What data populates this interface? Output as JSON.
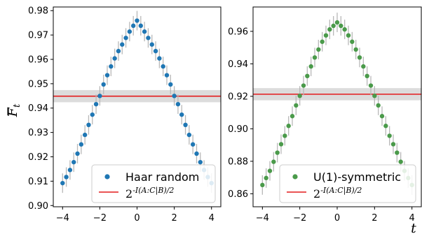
{
  "ylabel_symbol": "F",
  "ylabel_sub": "t",
  "xlabel": "t",
  "chart_data": [
    {
      "type": "scatter",
      "panel": "left",
      "ylim": [
        0.8995,
        0.9815
      ],
      "xlim": [
        -4.5,
        4.5
      ],
      "yticks": [
        "0.90",
        "0.91",
        "0.92",
        "0.93",
        "0.94",
        "0.95",
        "0.96",
        "0.97",
        "0.98"
      ],
      "xticks": [
        "−4",
        "−2",
        "0",
        "2",
        "4"
      ],
      "legend_position": "lower-right",
      "series": [
        {
          "name": "Haar random",
          "color": "#1f77b4",
          "x": [
            -4.0,
            -3.8,
            -3.6,
            -3.4,
            -3.2,
            -3.0,
            -2.8,
            -2.6,
            -2.4,
            -2.2,
            -2.0,
            -1.8,
            -1.6,
            -1.4,
            -1.2,
            -1.0,
            -0.8,
            -0.6,
            -0.4,
            -0.2,
            0.0,
            0.2,
            0.4,
            0.6,
            0.8,
            1.0,
            1.2,
            1.4,
            1.6,
            1.8,
            2.0,
            2.2,
            2.4,
            2.6,
            2.8,
            3.0,
            3.2,
            3.4,
            3.6,
            3.8,
            4.0
          ],
          "y": [
            0.9092,
            0.9117,
            0.9146,
            0.9178,
            0.9213,
            0.9251,
            0.929,
            0.9331,
            0.9373,
            0.9416,
            0.945,
            0.9497,
            0.9535,
            0.9571,
            0.9604,
            0.9634,
            0.9661,
            0.9688,
            0.9714,
            0.9738,
            0.9759,
            0.9738,
            0.9714,
            0.9688,
            0.9661,
            0.9634,
            0.9604,
            0.9571,
            0.9535,
            0.9497,
            0.945,
            0.9416,
            0.9373,
            0.9331,
            0.929,
            0.9251,
            0.9213,
            0.9178,
            0.9146,
            0.9117,
            0.9092
          ],
          "yerr": 0.004
        },
        {
          "name": "2^{-I(A:C|B)/2}",
          "type": "hline",
          "color": "#e41a1c",
          "y": 0.9449,
          "band": 0.001
        }
      ]
    },
    {
      "type": "scatter",
      "panel": "right",
      "ylim": [
        0.852,
        0.975
      ],
      "xlim": [
        -4.5,
        4.5
      ],
      "yticks": [
        "0.86",
        "0.88",
        "0.90",
        "0.92",
        "0.94",
        "0.96"
      ],
      "xticks": [
        "−4",
        "−2",
        "0",
        "2",
        "4"
      ],
      "legend_position": "lower-right",
      "series": [
        {
          "name": "U(1)-symmetric",
          "color": "#4a9a4a",
          "x": [
            -4.0,
            -3.8,
            -3.6,
            -3.4,
            -3.2,
            -3.0,
            -2.8,
            -2.6,
            -2.4,
            -2.2,
            -2.0,
            -1.8,
            -1.6,
            -1.4,
            -1.2,
            -1.0,
            -0.8,
            -0.6,
            -0.4,
            -0.2,
            0.0,
            0.2,
            0.4,
            0.6,
            0.8,
            1.0,
            1.2,
            1.4,
            1.6,
            1.8,
            2.0,
            2.2,
            2.4,
            2.6,
            2.8,
            3.0,
            3.2,
            3.4,
            3.6,
            3.8,
            4.0
          ],
          "y": [
            0.8654,
            0.8697,
            0.8741,
            0.8797,
            0.8853,
            0.8905,
            0.8957,
            0.9018,
            0.9078,
            0.9144,
            0.9203,
            0.9266,
            0.9325,
            0.9384,
            0.9439,
            0.9488,
            0.9536,
            0.9575,
            0.9612,
            0.9634,
            0.9655,
            0.9634,
            0.9612,
            0.9575,
            0.9536,
            0.9488,
            0.9439,
            0.9384,
            0.9325,
            0.9266,
            0.9203,
            0.9144,
            0.9078,
            0.9018,
            0.8957,
            0.8905,
            0.8853,
            0.8797,
            0.8741,
            0.8697,
            0.8654
          ],
          "yerr": 0.006
        },
        {
          "name": "2^{-I(A:C|B)/2}",
          "type": "hline",
          "color": "#e41a1c",
          "y": 0.9213,
          "band": 0.0015
        }
      ]
    }
  ]
}
